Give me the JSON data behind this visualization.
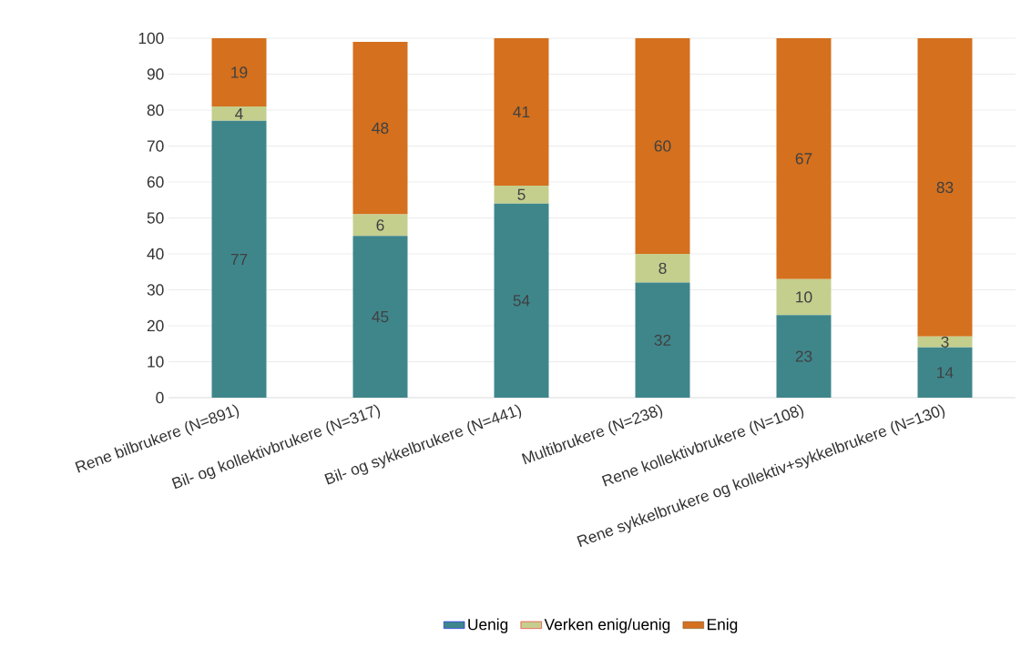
{
  "chart_data": {
    "type": "bar",
    "stacked": true,
    "categories": [
      "Rene bilbrukere (N=891)",
      "Bil- og kollektivbrukere (N=317)",
      "Bil- og sykkelbrukere (N=441)",
      "Multibrukere (N=238)",
      "Rene kollektivbrukere (N=108)",
      "Rene sykkelbrukere og kollektiv+sykkelbrukere (N=130)"
    ],
    "series": [
      {
        "name": "Uenig",
        "color": "#3f868b",
        "values": [
          77,
          45,
          54,
          32,
          23,
          14
        ]
      },
      {
        "name": "Verken enig/uenig",
        "color": "#c4cf8e",
        "values": [
          4,
          6,
          5,
          8,
          10,
          3
        ]
      },
      {
        "name": "Enig",
        "color": "#d4701e",
        "values": [
          19,
          48,
          41,
          60,
          67,
          83
        ]
      }
    ],
    "ylim": [
      0,
      100
    ],
    "yticks": [
      0,
      10,
      20,
      30,
      40,
      50,
      60,
      70,
      80,
      90,
      100
    ],
    "grid": "y",
    "legend": "bottom",
    "data_labels": true
  }
}
